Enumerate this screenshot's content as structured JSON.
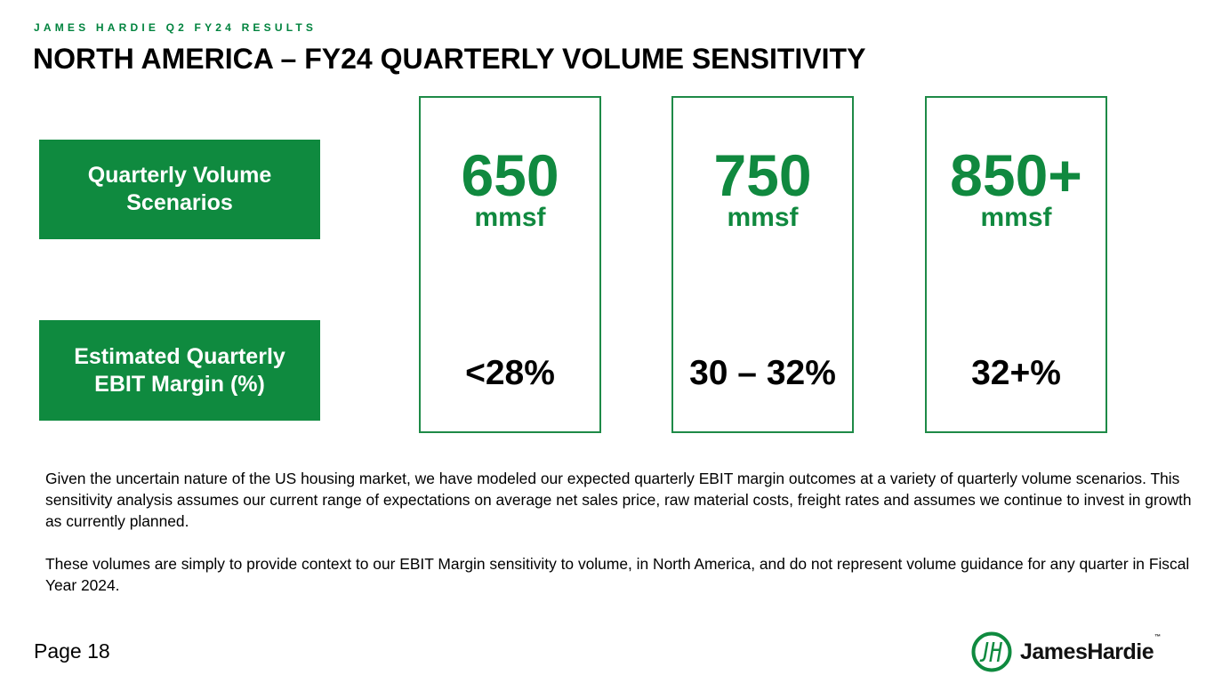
{
  "header": {
    "kicker": "JAMES HARDIE Q2 FY24 RESULTS",
    "title": "NORTH AMERICA – FY24 QUARTERLY VOLUME SENSITIVITY"
  },
  "labels": {
    "volume_line1": "Quarterly Volume",
    "volume_line2": "Scenarios",
    "margin_line1": "Estimated Quarterly",
    "margin_line2": "EBIT Margin (%)"
  },
  "scenarios": [
    {
      "volume": "650",
      "unit": "mmsf",
      "margin": "<28%"
    },
    {
      "volume": "750",
      "unit": "mmsf",
      "margin": "30 – 32%"
    },
    {
      "volume": "850+",
      "unit": "mmsf",
      "margin": "32+%"
    }
  ],
  "body": {
    "paragraph1": "Given the uncertain nature of the US housing market, we have modeled our expected quarterly EBIT margin outcomes at a variety of quarterly volume scenarios.  This sensitivity analysis assumes our current range of expectations on average net sales price, raw material costs, freight rates and assumes we continue to invest in growth as currently planned.",
    "paragraph2": "These volumes are simply to provide context to our EBIT Margin sensitivity to volume, in North America, and do not represent volume guidance for any quarter in Fiscal Year 2024."
  },
  "footer": {
    "page": "Page 18",
    "logo_text": "JamesHardie",
    "logo_tm": "™",
    "logo_icon": "james-hardie-jh-mark"
  },
  "colors": {
    "brand_green": "#0f8a3f",
    "accent_green": "#10893f",
    "border_green": "#1e8a47"
  }
}
